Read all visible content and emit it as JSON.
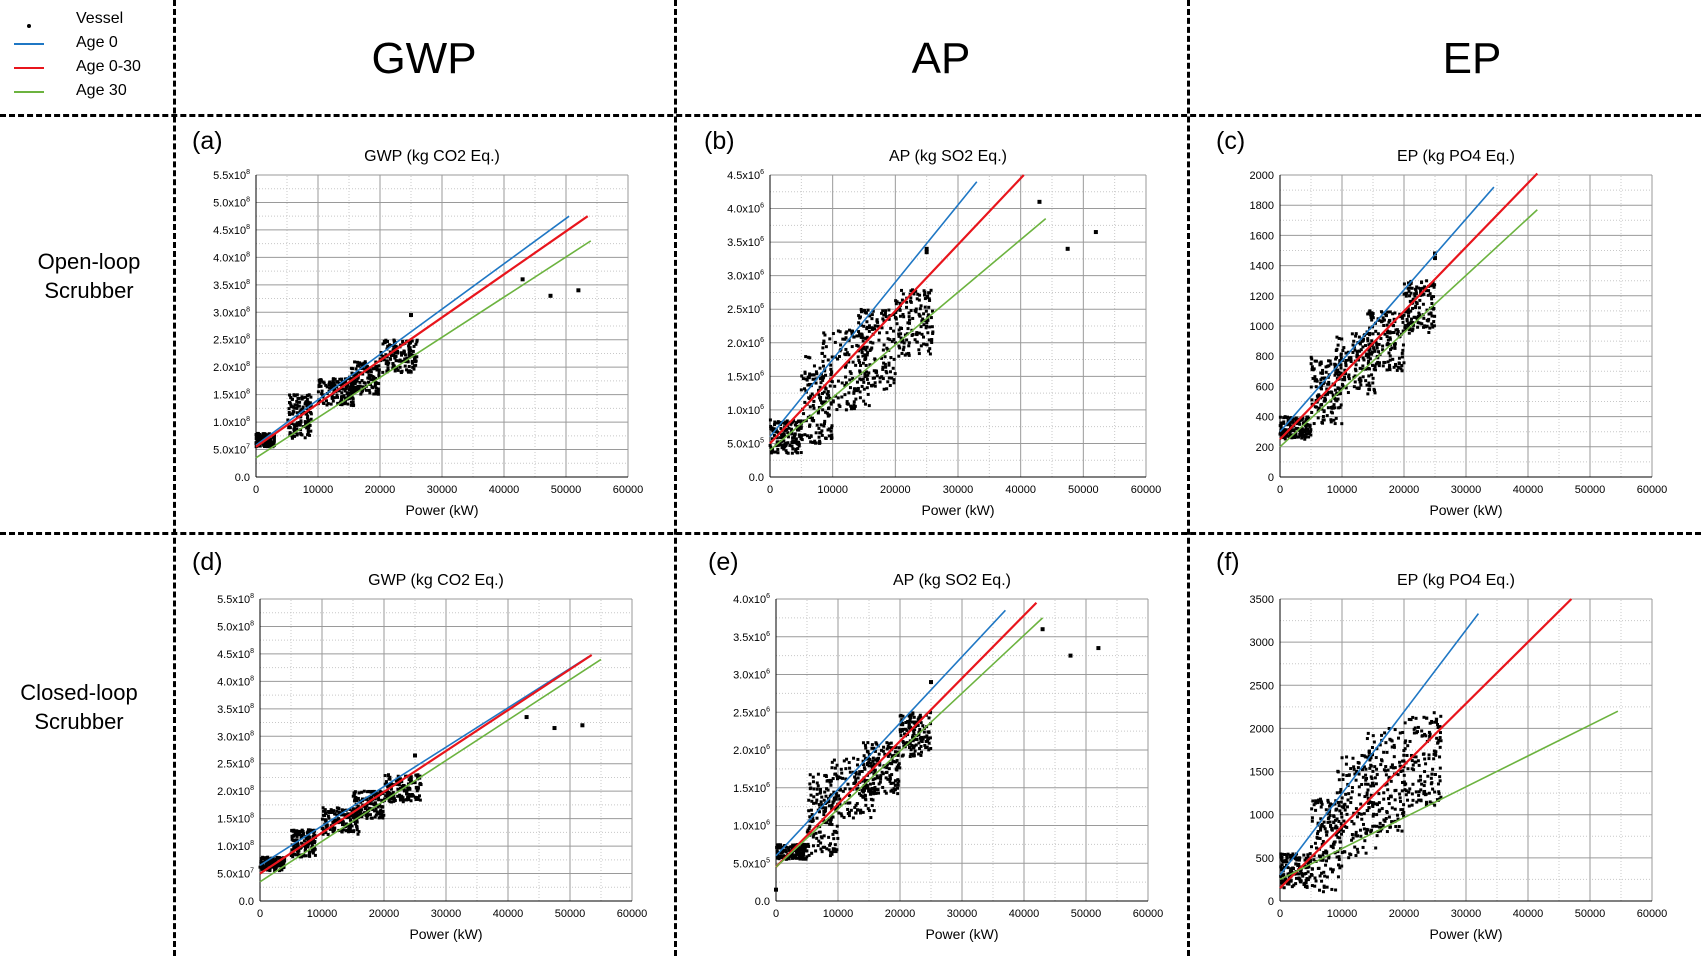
{
  "legend": {
    "items": [
      {
        "label": "Vessel",
        "color": "#000000",
        "kind": "marker"
      },
      {
        "label": "Age 0",
        "color": "#1f77c4",
        "kind": "line"
      },
      {
        "label": "Age 0-30",
        "color": "#e8151c",
        "kind": "line"
      },
      {
        "label": "Age 30",
        "color": "#6cb33f",
        "kind": "line"
      }
    ]
  },
  "columns": [
    "GWP",
    "AP",
    "EP"
  ],
  "rows": [
    {
      "line1": "Open-loop",
      "line2": "Scrubber"
    },
    {
      "line1": "Closed-loop",
      "line2": "Scrubber"
    }
  ],
  "panel_letters": [
    "(a)",
    "(b)",
    "(c)",
    "(d)",
    "(e)",
    "(f)"
  ],
  "chart_data": [
    {
      "panel": "(a)",
      "type": "scatter",
      "title": "GWP (kg CO2 Eq.)",
      "xlabel": "Power (kW)",
      "ylabel": "",
      "xlim": [
        0,
        60000
      ],
      "ylim": [
        0,
        550000000
      ],
      "x_ticks": [
        "0",
        "10000",
        "20000",
        "30000",
        "40000",
        "50000",
        "60000"
      ],
      "y_ticks": [
        "0.0",
        "5.0x10^7",
        "1.0x10^8",
        "1.5x10^8",
        "2.0x10^8",
        "2.5x10^8",
        "3.0x10^8",
        "3.5x10^8",
        "4.0x10^8",
        "4.5x10^8",
        "5.0x10^8",
        "5.5x10^8"
      ],
      "grid": true,
      "series": [
        {
          "name": "Vessel",
          "kind": "scatter",
          "clusters": [
            [
              0,
              3000,
              55000000,
              80000000
            ],
            [
              5000,
              9000,
              70000000,
              150000000
            ],
            [
              10000,
              16000,
              130000000,
              180000000
            ],
            [
              15000,
              20000,
              150000000,
              210000000
            ],
            [
              20000,
              26000,
              190000000,
              250000000
            ]
          ],
          "x": [
            25000,
            43000,
            47500,
            52000
          ],
          "y": [
            295000000,
            360000000,
            330000000,
            340000000
          ]
        },
        {
          "name": "Age 0",
          "kind": "line",
          "x": [
            0,
            50500
          ],
          "y": [
            58000000,
            475000000
          ]
        },
        {
          "name": "Age 0-30",
          "kind": "line",
          "x": [
            0,
            53500
          ],
          "y": [
            55000000,
            475000000
          ]
        },
        {
          "name": "Age 30",
          "kind": "line",
          "x": [
            0,
            54000
          ],
          "y": [
            35000000,
            430000000
          ]
        }
      ]
    },
    {
      "panel": "(b)",
      "type": "scatter",
      "title": "AP (kg SO2 Eq.)",
      "xlabel": "Power (kW)",
      "ylabel": "",
      "xlim": [
        0,
        60000
      ],
      "ylim": [
        0,
        4500000
      ],
      "x_ticks": [
        "0",
        "10000",
        "20000",
        "30000",
        "40000",
        "50000",
        "60000"
      ],
      "y_ticks": [
        "0.0",
        "5.0x10^5",
        "1.0x10^6",
        "1.5x10^6",
        "2.0x10^6",
        "2.5x10^6",
        "3.0x10^6",
        "3.5x10^6",
        "4.0x10^6",
        "4.5x10^6"
      ],
      "grid": true,
      "series": [
        {
          "name": "Vessel",
          "kind": "scatter",
          "clusters": [
            [
              0,
              5000,
              350000,
              850000
            ],
            [
              5000,
              10000,
              500000,
              1800000
            ],
            [
              8000,
              16000,
              1000000,
              2200000
            ],
            [
              14000,
              20000,
              1300000,
              2500000
            ],
            [
              20000,
              26000,
              1800000,
              2800000
            ]
          ],
          "x": [
            25000,
            25000,
            43000,
            47500,
            52000
          ],
          "y": [
            3350000,
            3400000,
            4100000,
            3400000,
            3650000
          ]
        },
        {
          "name": "Age 0",
          "kind": "line",
          "x": [
            0,
            33000
          ],
          "y": [
            600000,
            4400000
          ]
        },
        {
          "name": "Age 0-30",
          "kind": "line",
          "x": [
            0,
            40500
          ],
          "y": [
            500000,
            4500000
          ]
        },
        {
          "name": "Age 30",
          "kind": "line",
          "x": [
            0,
            44000
          ],
          "y": [
            400000,
            3850000
          ]
        }
      ]
    },
    {
      "panel": "(c)",
      "type": "scatter",
      "title": "EP (kg PO4 Eq.)",
      "xlabel": "Power (kW)",
      "ylabel": "",
      "xlim": [
        0,
        60000
      ],
      "ylim": [
        0,
        2000
      ],
      "x_ticks": [
        "0",
        "10000",
        "20000",
        "30000",
        "40000",
        "50000",
        "60000"
      ],
      "y_ticks": [
        "0",
        "200",
        "400",
        "600",
        "800",
        "1000",
        "1200",
        "1400",
        "1600",
        "1800",
        "2000"
      ],
      "grid": true,
      "series": [
        {
          "name": "Vessel",
          "kind": "scatter",
          "clusters": [
            [
              0,
              5000,
              250.0,
              400
            ],
            [
              5000,
              10000,
              350,
              800
            ],
            [
              9000,
              16000,
              550,
              950
            ],
            [
              14000,
              20000,
              700,
              1100
            ],
            [
              20000,
              25000,
              950,
              1300
            ]
          ],
          "x": [
            25000,
            25000
          ],
          "y": [
            1450,
            1480
          ]
        },
        {
          "name": "Age 0",
          "kind": "line",
          "x": [
            0,
            34500
          ],
          "y": [
            300,
            1920
          ]
        },
        {
          "name": "Age 0-30",
          "kind": "line",
          "x": [
            0,
            41500
          ],
          "y": [
            250,
            2010
          ]
        },
        {
          "name": "Age 30",
          "kind": "line",
          "x": [
            0,
            41500
          ],
          "y": [
            200,
            1770
          ]
        }
      ]
    },
    {
      "panel": "(d)",
      "type": "scatter",
      "title": "GWP (kg CO2 Eq.)",
      "xlabel": "Power (kW)",
      "ylabel": "",
      "xlim": [
        0,
        60000
      ],
      "ylim": [
        0,
        550000000
      ],
      "x_ticks": [
        "0",
        "10000",
        "20000",
        "30000",
        "40000",
        "50000",
        "60000"
      ],
      "y_ticks": [
        "0.0",
        "5.0x10^7",
        "1.0x10^8",
        "1.5x10^8",
        "2.0x10^8",
        "2.5x10^8",
        "3.0x10^8",
        "3.5x10^8",
        "4.0x10^8",
        "4.5x10^8",
        "5.0x10^8",
        "5.5x10^8"
      ],
      "grid": true,
      "series": [
        {
          "name": "Vessel",
          "kind": "scatter",
          "clusters": [
            [
              0,
              4000,
              55000000,
              80000000
            ],
            [
              5000,
              9000,
              80000000,
              130000000
            ],
            [
              10000,
              16000,
              120000000,
              170000000
            ],
            [
              15000,
              20000,
              150000000,
              200000000
            ],
            [
              20000,
              26000,
              180000000,
              230000000
            ]
          ],
          "x": [
            25000,
            43000,
            47500,
            52000
          ],
          "y": [
            265000000,
            335000000,
            315000000,
            320000000
          ]
        },
        {
          "name": "Age 0",
          "kind": "line",
          "x": [
            0,
            53000
          ],
          "y": [
            65000000,
            445000000
          ]
        },
        {
          "name": "Age 0-30",
          "kind": "line",
          "x": [
            0,
            53500
          ],
          "y": [
            50000000,
            448000000
          ]
        },
        {
          "name": "Age 30",
          "kind": "line",
          "x": [
            0,
            55000
          ],
          "y": [
            35000000,
            440000000
          ]
        }
      ]
    },
    {
      "panel": "(e)",
      "type": "scatter",
      "title": "AP (kg SO2 Eq.)",
      "xlabel": "Power (kW)",
      "ylabel": "",
      "xlim": [
        0,
        60000
      ],
      "ylim": [
        0,
        4000000
      ],
      "x_ticks": [
        "0",
        "10000",
        "20000",
        "30000",
        "40000",
        "50000",
        "60000"
      ],
      "y_ticks": [
        "0.0",
        "5.0x10^5",
        "1.0x10^6",
        "1.5x10^6",
        "2.0x10^6",
        "2.5x10^6",
        "3.0x10^6",
        "3.5x10^6",
        "4.0x10^6"
      ],
      "grid": true,
      "series": [
        {
          "name": "Vessel",
          "kind": "scatter",
          "clusters": [
            [
              0,
              5000,
              550000,
              750000
            ],
            [
              5000,
              10000,
              600000,
              1700000
            ],
            [
              9000,
              16000,
              1100000,
              1900000
            ],
            [
              14000,
              20000,
              1400000,
              2100000
            ],
            [
              20000,
              25000,
              1900000,
              2500000
            ]
          ],
          "x": [
            0,
            25000,
            43000,
            47500,
            52000
          ],
          "y": [
            150000,
            2900000,
            3600000,
            3250000,
            3350000
          ]
        },
        {
          "name": "Age 0",
          "kind": "line",
          "x": [
            0,
            37000
          ],
          "y": [
            600000,
            3850000
          ]
        },
        {
          "name": "Age 0-30",
          "kind": "line",
          "x": [
            0,
            42000
          ],
          "y": [
            450000,
            3950000
          ]
        },
        {
          "name": "Age 30",
          "kind": "line",
          "x": [
            0,
            43000
          ],
          "y": [
            450000,
            3750000
          ]
        }
      ]
    },
    {
      "panel": "(f)",
      "type": "scatter",
      "title": "EP (kg PO4 Eq.)",
      "xlabel": "Power (kW)",
      "ylabel": "",
      "xlim": [
        0,
        60000
      ],
      "ylim": [
        0,
        3500
      ],
      "x_ticks": [
        "0",
        "10000",
        "20000",
        "30000",
        "40000",
        "50000",
        "60000"
      ],
      "y_ticks": [
        "0",
        "500",
        "1000",
        "1500",
        "2000",
        "2500",
        "3000",
        "3500"
      ],
      "grid": true,
      "series": [
        {
          "name": "Vessel",
          "kind": "scatter",
          "clusters": [
            [
              0,
              5000,
              150,
              550
            ],
            [
              5000,
              10000,
              100,
              1200
            ],
            [
              9000,
              16000,
              500,
              1700
            ],
            [
              14000,
              20000,
              800,
              2000
            ],
            [
              20000,
              26000,
              1100,
              2200
            ]
          ],
          "x": [],
          "y": []
        },
        {
          "name": "Age 0",
          "kind": "line",
          "x": [
            0,
            32000
          ],
          "y": [
            300,
            3330
          ]
        },
        {
          "name": "Age 0-30",
          "kind": "line",
          "x": [
            0,
            47000
          ],
          "y": [
            150,
            3500
          ]
        },
        {
          "name": "Age 30",
          "kind": "line",
          "x": [
            0,
            54500
          ],
          "y": [
            250,
            2200
          ]
        }
      ]
    }
  ]
}
